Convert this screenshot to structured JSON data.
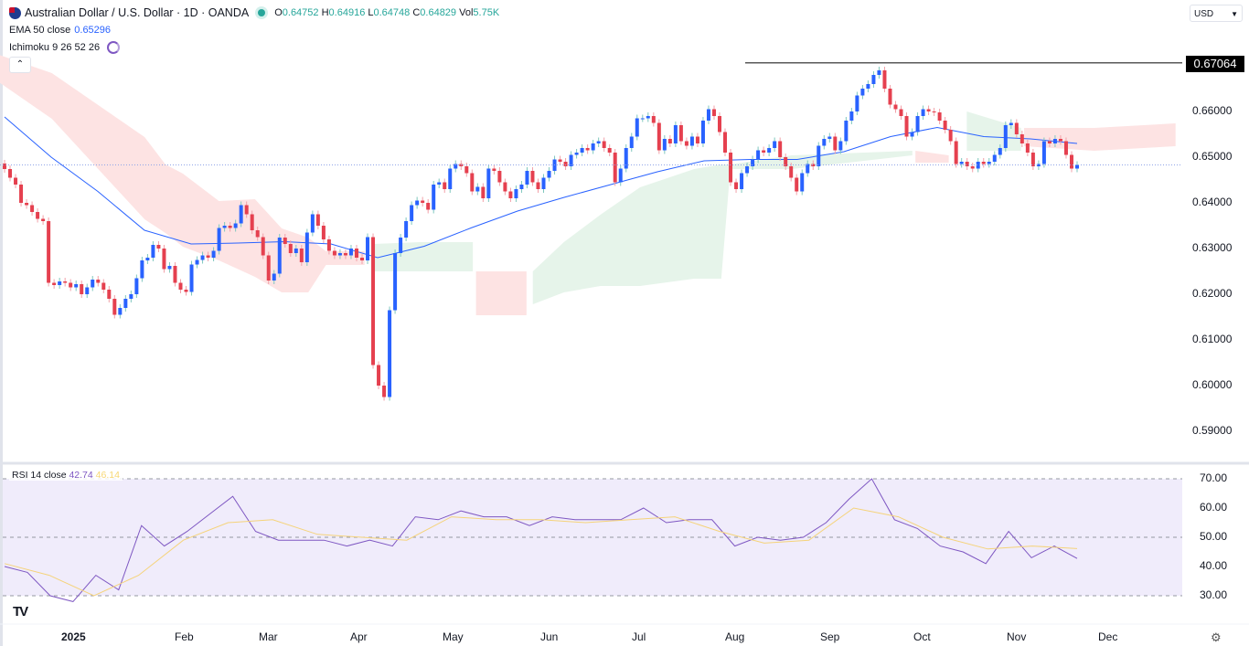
{
  "header": {
    "symbol_title": "Australian Dollar / U.S. Dollar · 1D · OANDA",
    "ohlc": {
      "o_label": "O",
      "o": "0.64752",
      "h_label": "H",
      "h": "0.64916",
      "l_label": "L",
      "l": "0.64748",
      "c_label": "C",
      "c": "0.64829",
      "vol_label": "Vol",
      "vol": "5.75K"
    },
    "ema": {
      "label": "EMA 50 close",
      "value": "0.65296"
    },
    "ichimoku": {
      "label": "Ichimoku 9 26 52 26"
    },
    "collapse_icon": "chevron-up-icon",
    "currency": "USD"
  },
  "rsi_legend": {
    "label": "RSI 14 close",
    "value": "42.74",
    "ma_value": "46.14"
  },
  "colors": {
    "up": "#2962ff",
    "down": "#e5404f",
    "ema": "#2962ff",
    "rsi": "#7e57c2",
    "rsi_ma": "#f5d37a",
    "cloud_bull": "#e6f4ea",
    "cloud_bear": "#fde3e3",
    "rsi_band": "#f0ecfb"
  },
  "chart_data": [
    {
      "type": "candlestick",
      "title": "Australian Dollar / U.S. Dollar · 1D · OANDA",
      "y_ticks": [
        "0.66000",
        "0.65000",
        "0.64000",
        "0.63000",
        "0.62000",
        "0.61000",
        "0.60000",
        "0.59000"
      ],
      "x_ticks": [
        "2025",
        "Feb",
        "Mar",
        "Apr",
        "May",
        "Jun",
        "Jul",
        "Aug",
        "Sep",
        "Oct",
        "Nov",
        "Dec"
      ],
      "ylim": [
        0.585,
        0.6745
      ],
      "horizontal_line": {
        "value": 0.67064,
        "label": "0.67064"
      },
      "last_price": 0.64829,
      "closes": [
        0.6474,
        0.6455,
        0.644,
        0.64,
        0.6395,
        0.638,
        0.6365,
        0.636,
        0.6225,
        0.622,
        0.6228,
        0.6225,
        0.6215,
        0.6222,
        0.62,
        0.6215,
        0.6232,
        0.6225,
        0.621,
        0.619,
        0.6155,
        0.617,
        0.619,
        0.62,
        0.6235,
        0.6274,
        0.628,
        0.6308,
        0.63,
        0.6255,
        0.6262,
        0.6225,
        0.621,
        0.6205,
        0.6265,
        0.6275,
        0.6285,
        0.628,
        0.6295,
        0.6345,
        0.635,
        0.6345,
        0.6355,
        0.6395,
        0.6375,
        0.634,
        0.6325,
        0.6285,
        0.623,
        0.6245,
        0.6324,
        0.631,
        0.629,
        0.63,
        0.627,
        0.6335,
        0.6375,
        0.635,
        0.632,
        0.6295,
        0.6285,
        0.629,
        0.6285,
        0.63,
        0.628,
        0.6274,
        0.6325,
        0.6045,
        0.6,
        0.5975,
        0.6165,
        0.629,
        0.6324,
        0.636,
        0.6395,
        0.6405,
        0.64,
        0.6385,
        0.644,
        0.6445,
        0.643,
        0.6475,
        0.6485,
        0.648,
        0.6465,
        0.6425,
        0.6435,
        0.641,
        0.6475,
        0.647,
        0.6445,
        0.6425,
        0.641,
        0.643,
        0.644,
        0.647,
        0.6445,
        0.643,
        0.6455,
        0.647,
        0.6495,
        0.649,
        0.648,
        0.6505,
        0.651,
        0.652,
        0.6515,
        0.653,
        0.6535,
        0.652,
        0.651,
        0.6445,
        0.6475,
        0.652,
        0.6545,
        0.6585,
        0.6585,
        0.659,
        0.6575,
        0.6515,
        0.654,
        0.653,
        0.657,
        0.6535,
        0.6525,
        0.6545,
        0.653,
        0.658,
        0.6605,
        0.659,
        0.6555,
        0.651,
        0.6445,
        0.643,
        0.6465,
        0.648,
        0.6495,
        0.6515,
        0.651,
        0.652,
        0.6535,
        0.65,
        0.648,
        0.6455,
        0.6425,
        0.6465,
        0.6485,
        0.648,
        0.6525,
        0.654,
        0.6545,
        0.6515,
        0.6535,
        0.658,
        0.66,
        0.6635,
        0.665,
        0.666,
        0.668,
        0.669,
        0.665,
        0.6615,
        0.6605,
        0.659,
        0.6545,
        0.6555,
        0.659,
        0.6605,
        0.66,
        0.6598,
        0.658,
        0.656,
        0.6535,
        0.6485,
        0.649,
        0.648,
        0.6475,
        0.649,
        0.6485,
        0.649,
        0.6505,
        0.652,
        0.657,
        0.6575,
        0.655,
        0.653,
        0.651,
        0.648,
        0.6485,
        0.6535,
        0.653,
        0.654,
        0.6535,
        0.6505,
        0.6475,
        0.6483
      ],
      "ema_50": {
        "label": "EMA 50 close",
        "values": [
          0.6588,
          0.65,
          0.6425,
          0.634,
          0.631,
          0.6312,
          0.6315,
          0.631,
          0.628,
          0.6305,
          0.6345,
          0.6382,
          0.6412,
          0.644,
          0.6468,
          0.6492,
          0.6495,
          0.6495,
          0.6512,
          0.6545,
          0.6565,
          0.6545,
          0.654,
          0.653
        ]
      },
      "ichimoku_cloud": [
        {
          "trend": "bear",
          "points": [
            [
              "2024-12-09",
              0.6724,
              0.6664
            ],
            [
              "2024-12-25",
              0.6684,
              0.6584
            ],
            [
              "2025-01-21",
              0.6544,
              0.6364
            ],
            [
              "2025-01-27",
              0.6484,
              0.6334
            ],
            [
              "2025-02-01",
              0.6464,
              0.6304
            ],
            [
              "2025-02-13",
              0.6404,
              0.6274
            ],
            [
              "2025-02-25",
              0.6408,
              0.6238
            ],
            [
              "2025-03-06",
              0.6344,
              0.6204
            ],
            [
              "2025-03-15",
              0.6324,
              0.6204
            ],
            [
              "2025-03-21",
              0.6294,
              0.6264
            ],
            [
              "2025-04-03",
              0.6294,
              0.6264
            ]
          ]
        },
        {
          "trend": "bull",
          "points": [
            [
              "2025-04-06",
              0.631,
              0.625
            ],
            [
              "2025-04-21",
              0.6314,
              0.625
            ],
            [
              "2025-05-08",
              0.6314,
              0.625
            ]
          ]
        },
        {
          "trend": "bear",
          "points": [
            [
              "2025-05-09",
              0.625,
              0.6154
            ],
            [
              "2025-05-25",
              0.625,
              0.6154
            ]
          ]
        },
        {
          "trend": "bull",
          "points": [
            [
              "2025-05-27",
              0.625,
              0.6178
            ],
            [
              "2025-06-06",
              0.6314,
              0.6204
            ],
            [
              "2025-06-18",
              0.6374,
              0.6218
            ],
            [
              "2025-07-01",
              0.6434,
              0.6218
            ],
            [
              "2025-07-19",
              0.6474,
              0.6234
            ],
            [
              "2025-07-28",
              0.6484,
              0.6234
            ],
            [
              "2025-07-31",
              0.6484,
              0.6474
            ],
            [
              "2025-08-20",
              0.6504,
              0.6474
            ],
            [
              "2025-09-28",
              0.6514,
              0.6504
            ]
          ]
        },
        {
          "trend": "bear",
          "points": [
            [
              "2025-09-29",
              0.6514,
              0.6488
            ],
            [
              "2025-10-10",
              0.6504,
              0.6488
            ]
          ]
        },
        {
          "trend": "bull",
          "points": [
            [
              "2025-10-16",
              0.66,
              0.6514
            ],
            [
              "2025-11-03",
              0.6564,
              0.6514
            ]
          ]
        },
        {
          "trend": "bear",
          "points": [
            [
              "2025-11-04",
              0.6564,
              0.6524
            ],
            [
              "2025-11-27",
              0.6564,
              0.6514
            ],
            [
              "2025-12-24",
              0.6574,
              0.6524
            ]
          ]
        }
      ]
    },
    {
      "type": "line",
      "title": "RSI 14 close",
      "y_ticks": [
        "70.00",
        "60.00",
        "50.00",
        "40.00",
        "30.00"
      ],
      "ylim": [
        24,
        72
      ],
      "band": [
        30,
        70
      ],
      "levels": [
        70,
        50,
        30
      ],
      "series": [
        {
          "name": "RSI",
          "values": [
            40,
            38,
            30,
            28,
            37,
            32,
            54,
            47,
            52,
            58,
            64,
            52,
            49,
            49,
            49,
            47,
            49,
            47,
            57,
            56,
            59,
            57,
            57,
            54,
            57,
            56,
            56,
            56,
            60,
            55,
            56,
            56,
            47,
            50,
            49,
            50,
            55,
            63,
            70,
            56,
            53,
            47,
            45,
            41,
            52,
            43,
            47,
            42.74
          ]
        },
        {
          "name": "RSI MA",
          "values": [
            41,
            37,
            30,
            37,
            49,
            55,
            56,
            51,
            50,
            49,
            57,
            56,
            56,
            55,
            56,
            57,
            52,
            48,
            49,
            60,
            57,
            50,
            46,
            47,
            46.14
          ]
        }
      ]
    }
  ]
}
